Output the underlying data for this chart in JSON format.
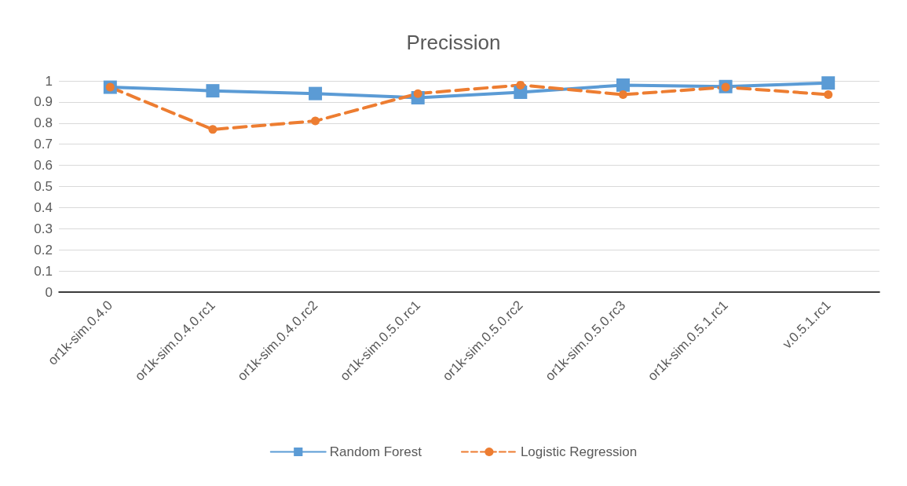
{
  "chart_data": {
    "type": "line",
    "title": "Precission",
    "categories": [
      "or1k-sim.0.4.0",
      "or1k-sim.0.4.0.rc1",
      "or1k-sim.0.4.0.rc2",
      "or1k-sim.0.5.0.rc1",
      "or1k-sim.0.5.0.rc2",
      "or1k-sim.0.5.0.rc3",
      "or1k-sim.0.5.1.rc1",
      "v.0.5.1.rc1"
    ],
    "series": [
      {
        "name": "Random Forest",
        "color": "#5b9bd5",
        "marker": "square",
        "line_style": "solid",
        "values": [
          0.97,
          0.953,
          0.94,
          0.92,
          0.946,
          0.98,
          0.973,
          0.99
        ]
      },
      {
        "name": "Logistic Regression",
        "color": "#ed7d31",
        "marker": "circle",
        "line_style": "dashed",
        "values": [
          0.97,
          0.77,
          0.81,
          0.94,
          0.98,
          0.935,
          0.97,
          0.935
        ]
      }
    ],
    "ylim": [
      0,
      1
    ],
    "yticks": [
      0,
      0.1,
      0.2,
      0.3,
      0.4,
      0.5,
      0.6,
      0.7,
      0.8,
      0.9,
      1
    ],
    "grid": "y",
    "legend": "bottom"
  }
}
